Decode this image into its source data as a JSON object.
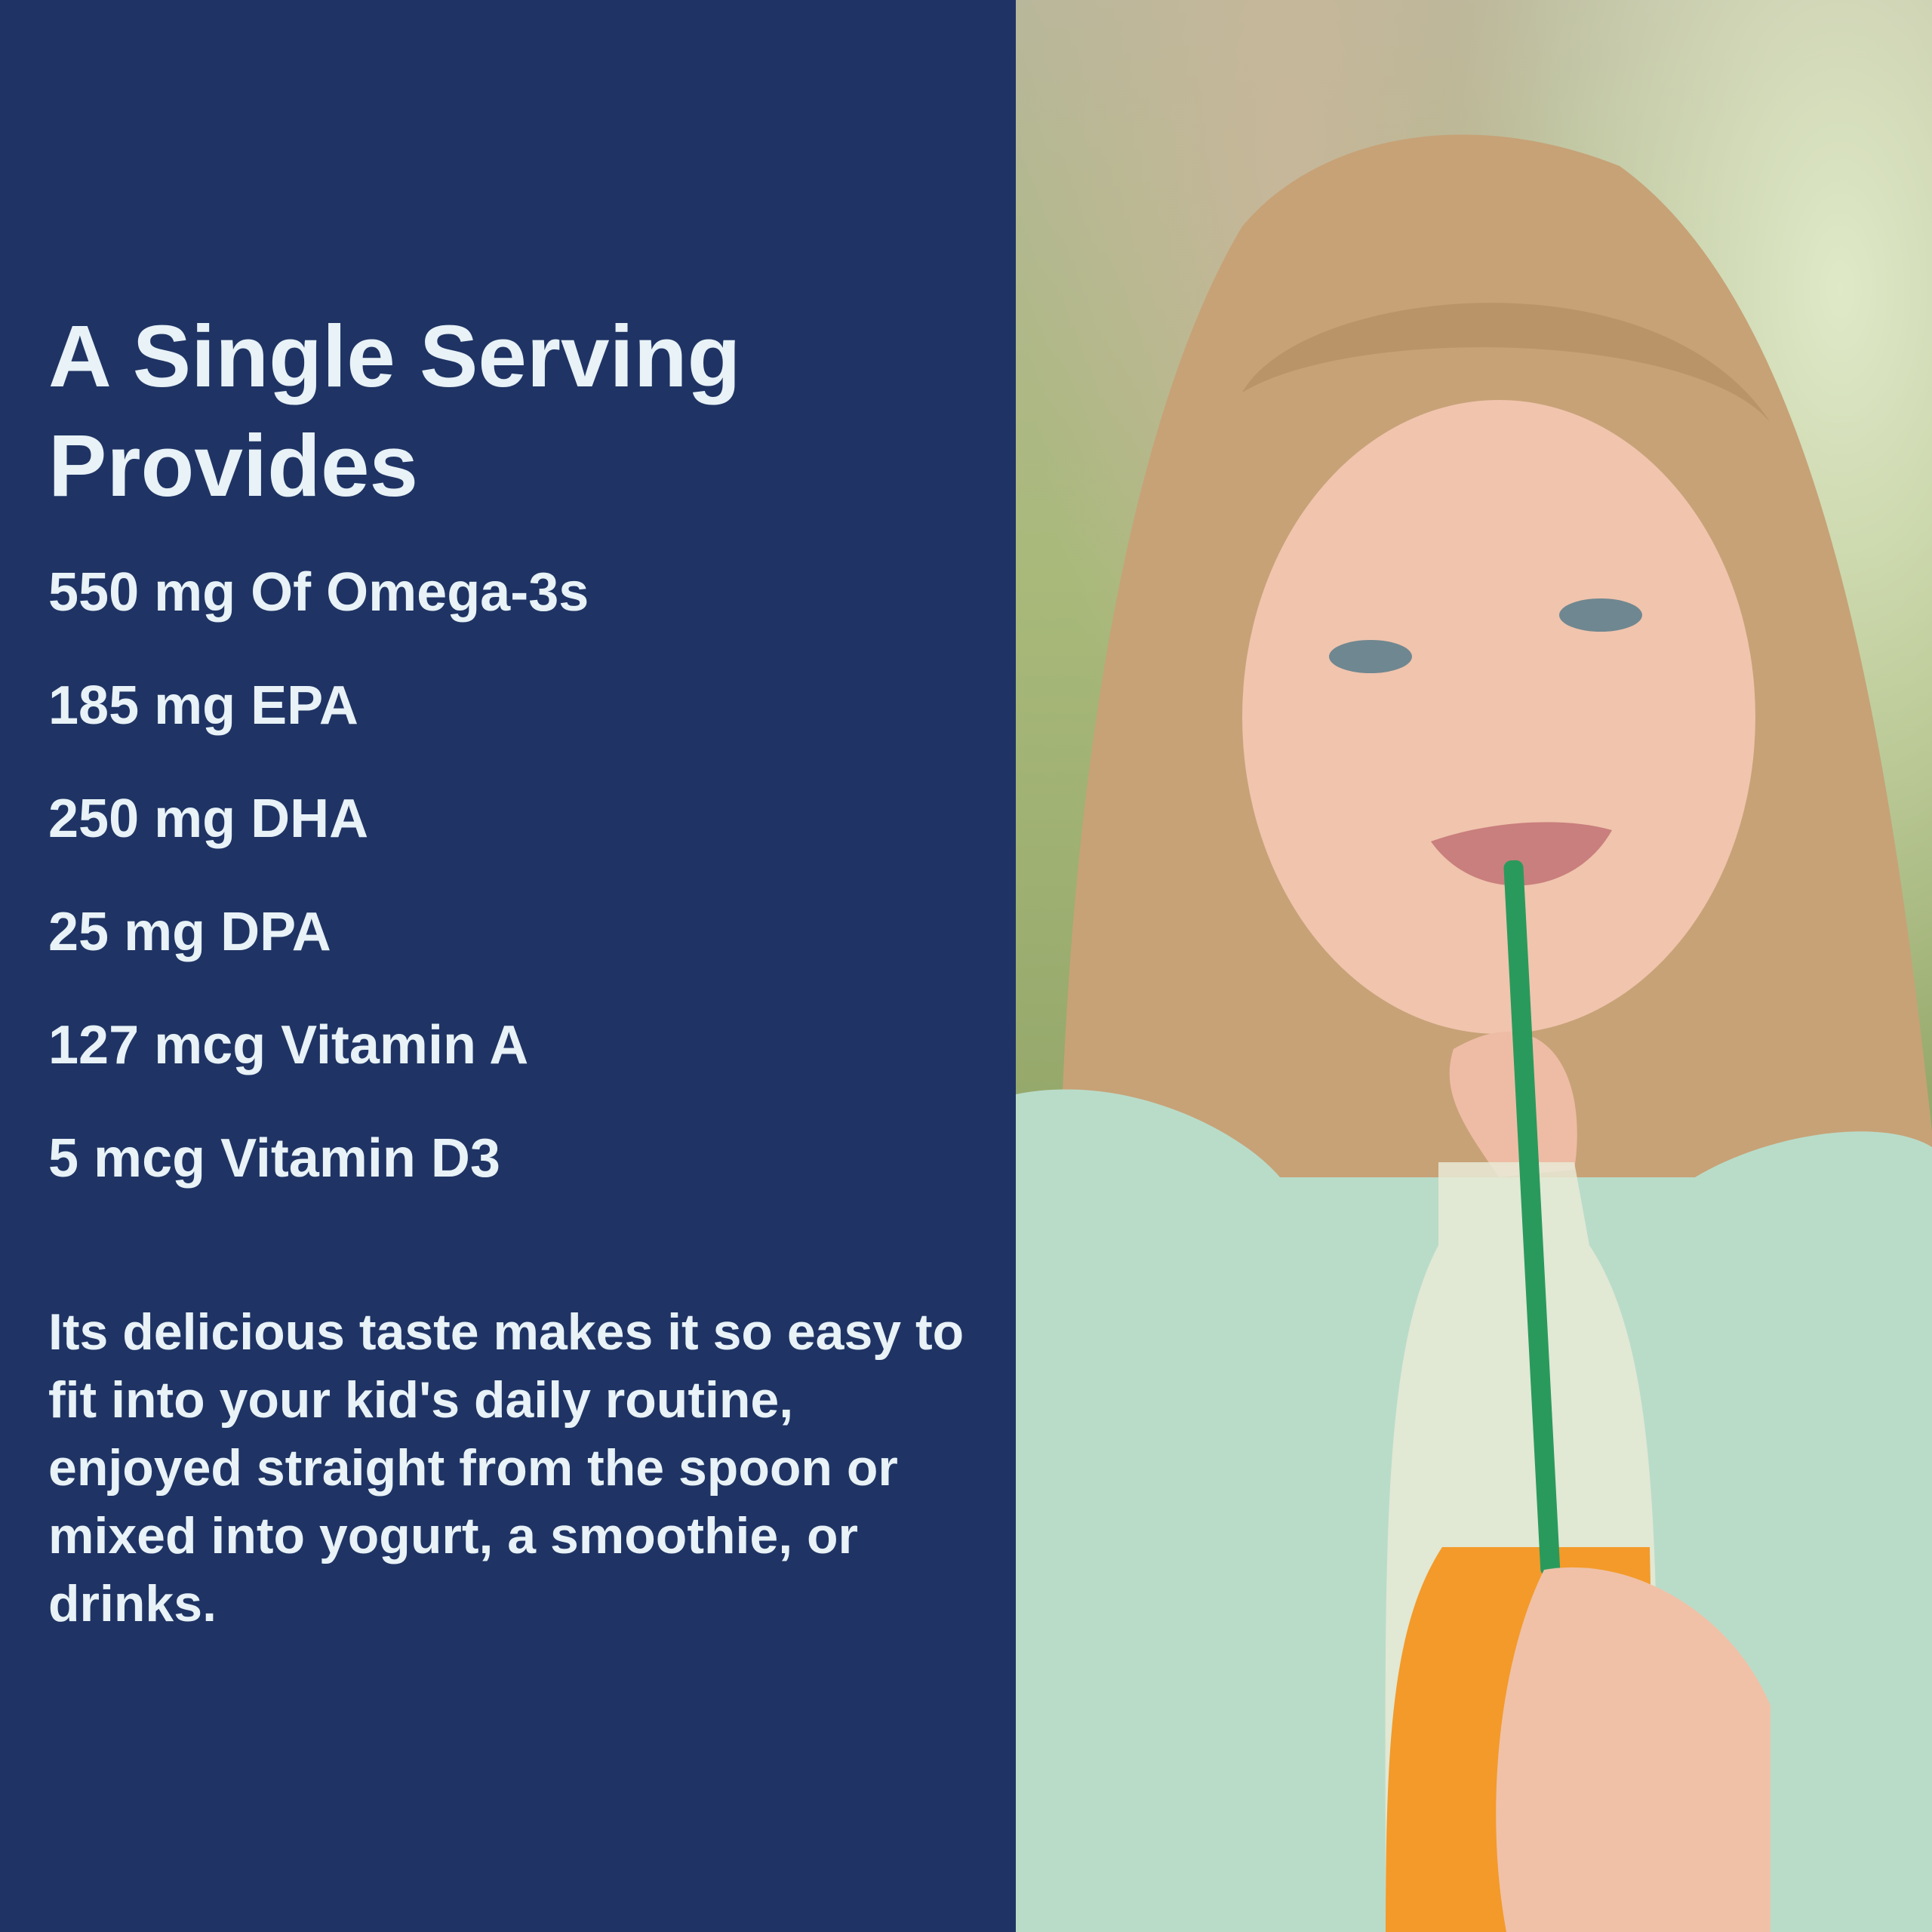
{
  "title": "A Single Serving Provides",
  "items": [
    "550 mg Of Omega-3s",
    "185 mg EPA",
    "250 mg DHA",
    "25 mg DPA",
    "127 mcg Vitamin A",
    "5 mcg Vitamin D3"
  ],
  "paragraph": "Its delicious taste makes it so easy to fit into your kid's daily routine, enjoyed straight from the spoon or mixed into yogurt, a smoothie, or drinks.",
  "colors": {
    "panel": "#1f3464",
    "text": "#e8f2f7"
  }
}
